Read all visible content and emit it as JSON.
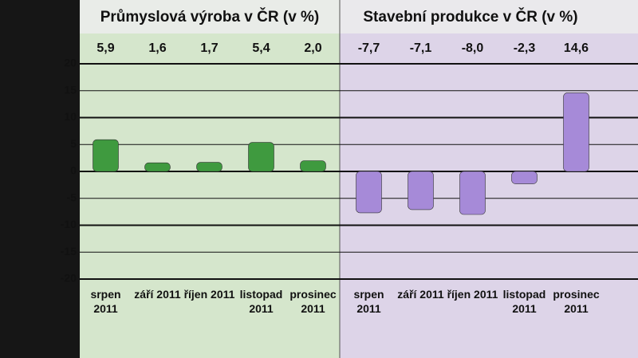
{
  "chart_data": [
    {
      "type": "bar",
      "title": "Průmyslová výroba v ČR (v %)",
      "categories": [
        "srpen 2011",
        "září 2011",
        "říjen 2011",
        "listopad 2011",
        "prosinec 2011"
      ],
      "values": [
        5.9,
        1.6,
        1.7,
        5.4,
        2.0
      ],
      "value_labels": [
        "5,9",
        "1,6",
        "1,7",
        "5,4",
        "2,0"
      ],
      "color": "#3f9a3f",
      "ylim": [
        -20,
        20
      ],
      "yticks": [
        -20,
        -15,
        -10,
        -5,
        0,
        5,
        10,
        15,
        20
      ],
      "grid": true
    },
    {
      "type": "bar",
      "title": "Stavební produkce v ČR (v %)",
      "categories": [
        "srpen 2011",
        "září 2011",
        "říjen 2011",
        "listopad 2011",
        "prosinec 2011"
      ],
      "values": [
        -7.7,
        -7.1,
        -8.0,
        -2.3,
        14.6
      ],
      "value_labels": [
        "-7,7",
        "-7,1",
        "-8,0",
        "-2,3",
        "14,6"
      ],
      "color": "#a68ad8",
      "ylim": [
        -20,
        20
      ],
      "yticks": [
        -20,
        -15,
        -10,
        -5,
        0,
        5,
        10,
        15,
        20
      ],
      "grid": true
    }
  ]
}
